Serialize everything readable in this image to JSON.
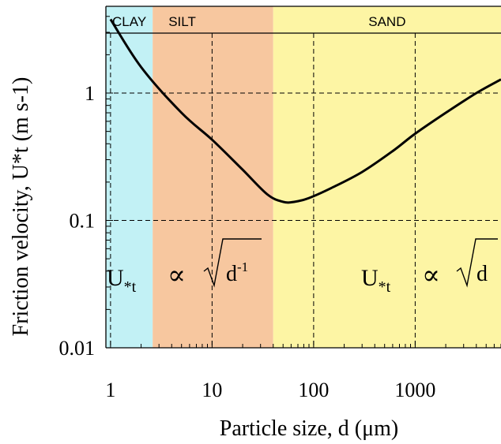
{
  "chart_data": {
    "type": "line",
    "xlabel": "Particle size, d (μm)",
    "ylabel": "Friction velocity, U*t (m s-1)",
    "x_scale": "log",
    "y_scale": "log",
    "xlim": [
      0.9,
      7000
    ],
    "ylim": [
      0.01,
      4.8
    ],
    "x_ticks": [
      {
        "value": 1,
        "label": "1"
      },
      {
        "value": 10,
        "label": "10"
      },
      {
        "value": 100,
        "label": "100"
      },
      {
        "value": 1000,
        "label": "1000"
      }
    ],
    "y_ticks": [
      {
        "value": 0.01,
        "label": "0.01"
      },
      {
        "value": 0.1,
        "label": "0.1"
      },
      {
        "value": 1,
        "label": "1"
      }
    ],
    "grid": "dashed",
    "regions": [
      {
        "label": "CLAY",
        "from": 0.9,
        "to": 2.6,
        "color": "#c2f1f5"
      },
      {
        "label": "SILT",
        "from": 2.6,
        "to": 40,
        "color": "#f7c79f"
      },
      {
        "label": "SAND",
        "from": 40,
        "to": 7000,
        "color": "#fdf5a4"
      }
    ],
    "series": [
      {
        "x": [
          1,
          2,
          5,
          10,
          20,
          35,
          50,
          65,
          90,
          150,
          300,
          600,
          1000,
          2000,
          4000,
          7000
        ],
        "y": [
          3.8,
          1.6,
          0.7,
          0.43,
          0.25,
          0.16,
          0.14,
          0.14,
          0.15,
          0.18,
          0.24,
          0.35,
          0.48,
          0.7,
          1.0,
          1.28
        ],
        "color": "#000000"
      }
    ],
    "annotations": [
      {
        "lhs": "U",
        "sub": "*t",
        "relation": "∝",
        "radicand": "d",
        "exponent": "-1"
      },
      {
        "lhs": "U",
        "sub": "*t",
        "relation": "∝",
        "radicand": "d",
        "exponent": ""
      }
    ]
  }
}
